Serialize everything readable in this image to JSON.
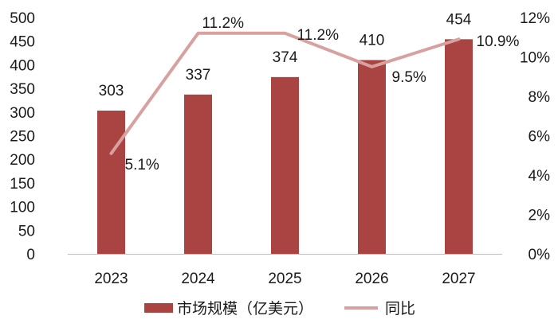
{
  "chart_data": {
    "type": "bar+line",
    "categories": [
      "2023",
      "2024",
      "2025",
      "2026",
      "2027"
    ],
    "series": [
      {
        "name": "市场规模（亿美元）",
        "kind": "bar",
        "axis": "left",
        "values": [
          303,
          337,
          374,
          410,
          454
        ],
        "labels": [
          "303",
          "337",
          "374",
          "410",
          "454"
        ],
        "color": "#a94442"
      },
      {
        "name": "同比",
        "kind": "line",
        "axis": "right",
        "values": [
          5.1,
          11.2,
          11.2,
          9.5,
          10.9
        ],
        "labels": [
          "5.1%",
          "11.2%",
          "11.2%",
          "9.5%",
          "10.9%"
        ],
        "color": "#d9a0a0"
      }
    ],
    "y_left": {
      "min": 0,
      "max": 500,
      "step": 50,
      "ticks": [
        "0",
        "50",
        "100",
        "150",
        "200",
        "250",
        "300",
        "350",
        "400",
        "450",
        "500"
      ]
    },
    "y_right": {
      "min": 0,
      "max": 12,
      "step": 2,
      "ticks": [
        "0%",
        "2%",
        "4%",
        "6%",
        "8%",
        "10%",
        "12%"
      ]
    },
    "grid": false,
    "legend_position": "bottom"
  }
}
